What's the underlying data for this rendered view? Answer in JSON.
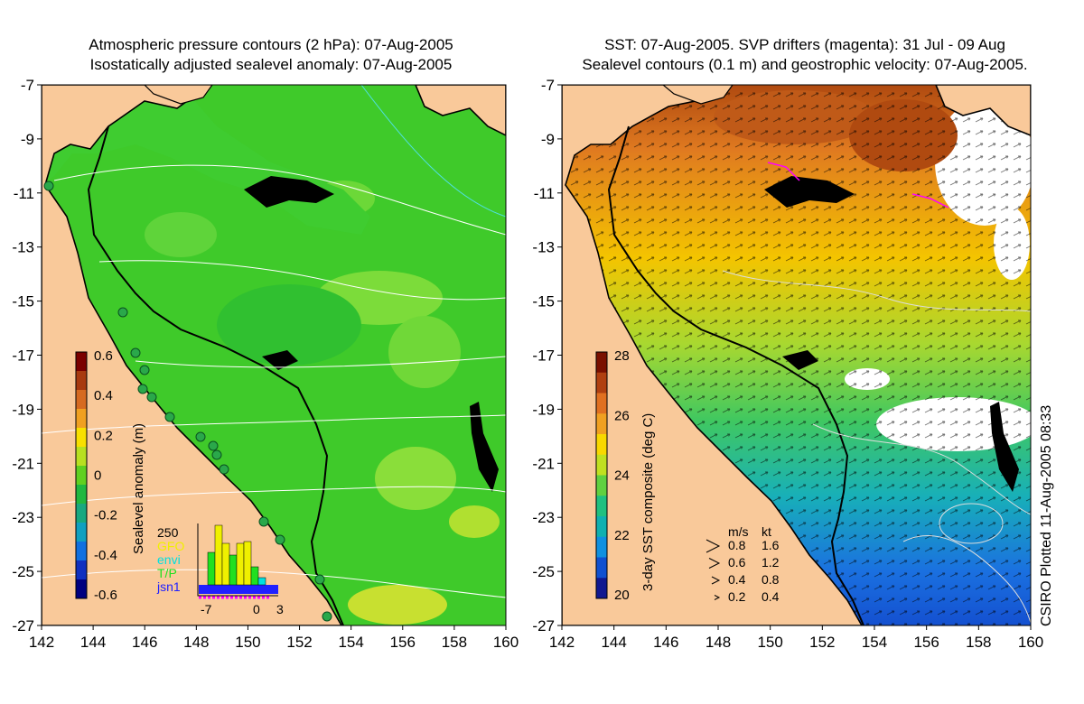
{
  "left_panel": {
    "title_line1": "Atmospheric pressure contours (2 hPa): 07-Aug-2005",
    "title_line2": "Isostatically adjusted sealevel anomaly: 07-Aug-2005",
    "y_ticks": [
      "-7",
      "-9",
      "-11",
      "-13",
      "-15",
      "-17",
      "-19",
      "-21",
      "-23",
      "-25",
      "-27"
    ],
    "x_ticks": [
      "142",
      "144",
      "146",
      "148",
      "150",
      "152",
      "154",
      "156",
      "158",
      "160"
    ],
    "colorbar": {
      "label": "Sealevel anomaly (m)",
      "ticks": [
        "0.6",
        "0.4",
        "0.2",
        "0",
        "-0.2",
        "-0.4",
        "-0.6"
      ],
      "colors": [
        "#7a0000",
        "#a83a10",
        "#d66a20",
        "#f0a020",
        "#f8e000",
        "#b8e020",
        "#60d020",
        "#20b840",
        "#18a880",
        "#10a0c0",
        "#1070e0",
        "#1030c0",
        "#000080"
      ]
    },
    "inset": {
      "legend": [
        {
          "label": "250",
          "color": "#000000"
        },
        {
          "label": "GFO",
          "color": "#f0f000"
        },
        {
          "label": "envi",
          "color": "#00e0e0"
        },
        {
          "label": "T/P",
          "color": "#20e020"
        },
        {
          "label": "jsn1",
          "color": "#2020ff"
        }
      ],
      "x_ticks": [
        "-7",
        "0",
        "3"
      ]
    }
  },
  "right_panel": {
    "title_line1": "SST: 07-Aug-2005. SVP drifters (magenta): 31 Jul - 09 Aug",
    "title_line2": "Sealevel contours (0.1 m) and geostrophic velocity: 07-Aug-2005.",
    "y_ticks": [
      "-7",
      "-9",
      "-11",
      "-13",
      "-15",
      "-17",
      "-19",
      "-21",
      "-23",
      "-25",
      "-27"
    ],
    "x_ticks": [
      "142",
      "144",
      "146",
      "148",
      "150",
      "152",
      "154",
      "156",
      "158",
      "160"
    ],
    "colorbar": {
      "label": "3-day SST composite (deg C)",
      "ticks": [
        "28",
        "26",
        "24",
        "22",
        "20"
      ],
      "colors": [
        "#7a1000",
        "#b04010",
        "#e07020",
        "#f0a020",
        "#f8d800",
        "#c0e020",
        "#60d040",
        "#20c080",
        "#10b0b0",
        "#1090e0",
        "#1050d0",
        "#101890"
      ]
    },
    "velocity_legend": {
      "header_ms": "m/s",
      "header_kt": "kt",
      "rows": [
        {
          "ms": "0.8",
          "kt": "1.6"
        },
        {
          "ms": "0.6",
          "kt": "1.2"
        },
        {
          "ms": "0.4",
          "kt": "0.8"
        },
        {
          "ms": "0.2",
          "kt": "0.4"
        }
      ]
    }
  },
  "credit": "CSIRO Plotted 11-Aug-2005 08:33",
  "colors": {
    "land": "#f9c99a",
    "ocean_left": "#3fca2a",
    "coastline": "#000000",
    "contour": "#ffffff",
    "tide_gauge": "#2aa84a"
  }
}
